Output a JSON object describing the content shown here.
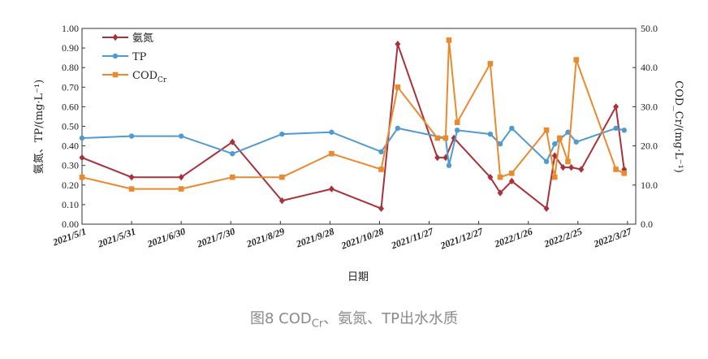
{
  "chart_data": {
    "type": "line",
    "xlabel": "日期",
    "ylabel_left": "氨氮、TP/(mg·L⁻¹)",
    "ylabel_right": "COD_Cr/(mg·L⁻¹)",
    "ylim_left": [
      0,
      1.0
    ],
    "ylim_right": [
      0,
      50.0
    ],
    "left_ticks": [
      "0.00",
      "0.10",
      "0.20",
      "0.30",
      "0.40",
      "0.50",
      "0.60",
      "0.70",
      "0.80",
      "0.90",
      "1.00"
    ],
    "right_ticks": [
      "0.0",
      "10.0",
      "20.0",
      "30.0",
      "40.0",
      "50.0"
    ],
    "x_tick_labels": [
      "2021/5/1",
      "2021/5/31",
      "2021/6/30",
      "2021/7/30",
      "2021/8/29",
      "2021/9/28",
      "2021/10/28",
      "2021/11/27",
      "2021/12/27",
      "2022/1/26",
      "2022/2/25",
      "2022/3/27"
    ],
    "x_range": [
      "2021/5/1",
      "2022/4/1"
    ],
    "legend_position": "top-left",
    "series": [
      {
        "name": "氨氮",
        "axis": "left",
        "color": "#a8323a",
        "marker": "diamond",
        "points": [
          [
            "2021/5/1",
            0.34
          ],
          [
            "2021/5/31",
            0.24
          ],
          [
            "2021/6/30",
            0.24
          ],
          [
            "2021/7/31",
            0.42
          ],
          [
            "2021/8/30",
            0.12
          ],
          [
            "2021/9/29",
            0.18
          ],
          [
            "2021/10/29",
            0.08
          ],
          [
            "2021/11/8",
            0.92
          ],
          [
            "2021/12/2",
            0.34
          ],
          [
            "2021/12/7",
            0.34
          ],
          [
            "2021/12/12",
            0.44
          ],
          [
            "2022/1/3",
            0.24
          ],
          [
            "2022/1/9",
            0.16
          ],
          [
            "2022/1/16",
            0.22
          ],
          [
            "2022/2/6",
            0.08
          ],
          [
            "2022/2/11",
            0.35
          ],
          [
            "2022/2/16",
            0.29
          ],
          [
            "2022/2/21",
            0.29
          ],
          [
            "2022/2/27",
            0.28
          ],
          [
            "2022/3/20",
            0.6
          ],
          [
            "2022/3/25",
            0.28
          ]
        ]
      },
      {
        "name": "TP",
        "axis": "left",
        "color": "#4f9ad1",
        "marker": "circle",
        "points": [
          [
            "2021/5/1",
            0.44
          ],
          [
            "2021/5/31",
            0.45
          ],
          [
            "2021/6/30",
            0.45
          ],
          [
            "2021/7/31",
            0.36
          ],
          [
            "2021/8/30",
            0.46
          ],
          [
            "2021/9/29",
            0.47
          ],
          [
            "2021/10/29",
            0.37
          ],
          [
            "2021/11/8",
            0.49
          ],
          [
            "2021/12/7",
            0.44
          ],
          [
            "2021/12/9",
            0.3
          ],
          [
            "2021/12/14",
            0.48
          ],
          [
            "2022/1/3",
            0.46
          ],
          [
            "2022/1/9",
            0.41
          ],
          [
            "2022/1/16",
            0.49
          ],
          [
            "2022/2/6",
            0.32
          ],
          [
            "2022/2/11",
            0.41
          ],
          [
            "2022/2/19",
            0.47
          ],
          [
            "2022/2/24",
            0.42
          ],
          [
            "2022/3/20",
            0.49
          ],
          [
            "2022/3/25",
            0.48
          ]
        ]
      },
      {
        "name": "COD",
        "name_sub": "Cr",
        "axis": "right",
        "color": "#e98a2e",
        "marker": "square",
        "points": [
          [
            "2021/5/1",
            12
          ],
          [
            "2021/5/31",
            9
          ],
          [
            "2021/6/30",
            9
          ],
          [
            "2021/7/31",
            12
          ],
          [
            "2021/8/30",
            12
          ],
          [
            "2021/9/29",
            18
          ],
          [
            "2021/10/29",
            14
          ],
          [
            "2021/11/8",
            35
          ],
          [
            "2021/12/2",
            22
          ],
          [
            "2021/12/7",
            22
          ],
          [
            "2021/12/9",
            47
          ],
          [
            "2021/12/14",
            26
          ],
          [
            "2022/1/3",
            41
          ],
          [
            "2022/1/9",
            12
          ],
          [
            "2022/1/16",
            13
          ],
          [
            "2022/2/6",
            24
          ],
          [
            "2022/2/11",
            12
          ],
          [
            "2022/2/14",
            22
          ],
          [
            "2022/2/19",
            16
          ],
          [
            "2022/2/24",
            42
          ],
          [
            "2022/3/20",
            14
          ],
          [
            "2022/3/25",
            13
          ]
        ]
      }
    ]
  },
  "caption": {
    "prefix": "图8 COD",
    "sub": "Cr",
    "suffix": "、氨氮、TP出水水质"
  }
}
